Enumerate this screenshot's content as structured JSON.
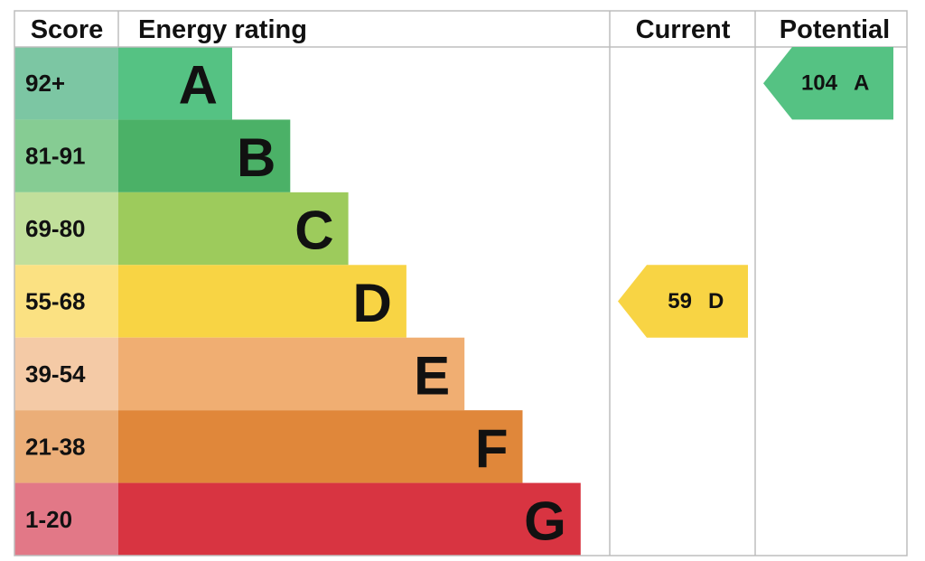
{
  "headers": {
    "score": "Score",
    "rating": "Energy rating",
    "current": "Current",
    "potential": "Potential"
  },
  "bands": [
    {
      "score": "92+",
      "letter": "A",
      "color": "#55c283",
      "score_color": "#7cc6a3"
    },
    {
      "score": "81-91",
      "letter": "B",
      "color": "#4bb167",
      "score_color": "#86cc93"
    },
    {
      "score": "69-80",
      "letter": "C",
      "color": "#9dcb5c",
      "score_color": "#c1df9b"
    },
    {
      "score": "55-68",
      "letter": "D",
      "color": "#f8d444",
      "score_color": "#fbe182"
    },
    {
      "score": "39-54",
      "letter": "E",
      "color": "#f0ae72",
      "score_color": "#f4caa6"
    },
    {
      "score": "21-38",
      "letter": "F",
      "color": "#e0873a",
      "score_color": "#ebae78"
    },
    {
      "score": "1-20",
      "letter": "G",
      "color": "#d83441",
      "score_color": "#e27887"
    }
  ],
  "current": {
    "value": 59,
    "letter": "D"
  },
  "potential": {
    "value": 104,
    "letter": "A"
  }
}
